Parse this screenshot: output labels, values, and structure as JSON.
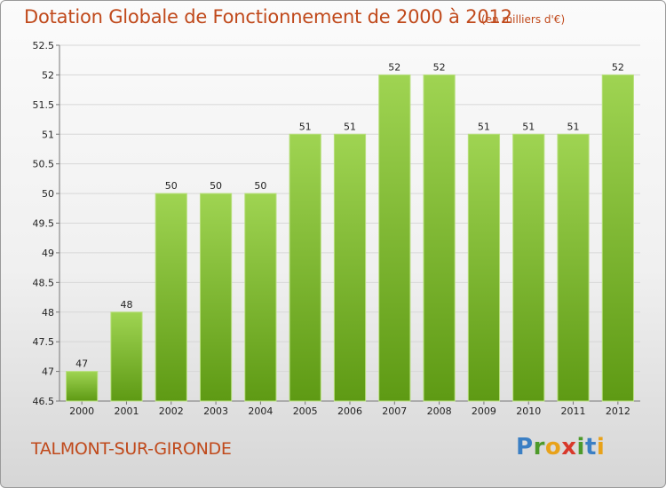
{
  "title": "Dotation Globale de Fonctionnement de 2000 à 2012",
  "subtitle": "(en milliers d'€)",
  "commune": "TALMONT-SUR-GIRONDE",
  "logo": {
    "letters": [
      "P",
      "r",
      "o",
      "x",
      "i",
      "t",
      "i"
    ]
  },
  "colors": {
    "title": "#c0491b",
    "bar_top": "#9fd452",
    "bar_bottom": "#5e9a14",
    "grid": "#d7d7d7"
  },
  "chart_data": {
    "type": "bar",
    "categories": [
      "2000",
      "2001",
      "2002",
      "2003",
      "2004",
      "2005",
      "2006",
      "2007",
      "2008",
      "2009",
      "2010",
      "2011",
      "2012"
    ],
    "values": [
      47,
      48,
      50,
      50,
      50,
      51,
      51,
      52,
      52,
      51,
      51,
      51,
      52
    ],
    "data_labels": [
      "47",
      "48",
      "50",
      "50",
      "50",
      "51",
      "51",
      "52",
      "52",
      "51",
      "51",
      "51",
      "52"
    ],
    "ylim": [
      46.5,
      52.5
    ],
    "yticks": [
      "46.5",
      "47",
      "47.5",
      "48",
      "48.5",
      "49",
      "49.5",
      "50",
      "50.5",
      "51",
      "51.5",
      "52",
      "52.5"
    ],
    "grid": true,
    "legend": "none",
    "xlabel": "",
    "ylabel": ""
  }
}
